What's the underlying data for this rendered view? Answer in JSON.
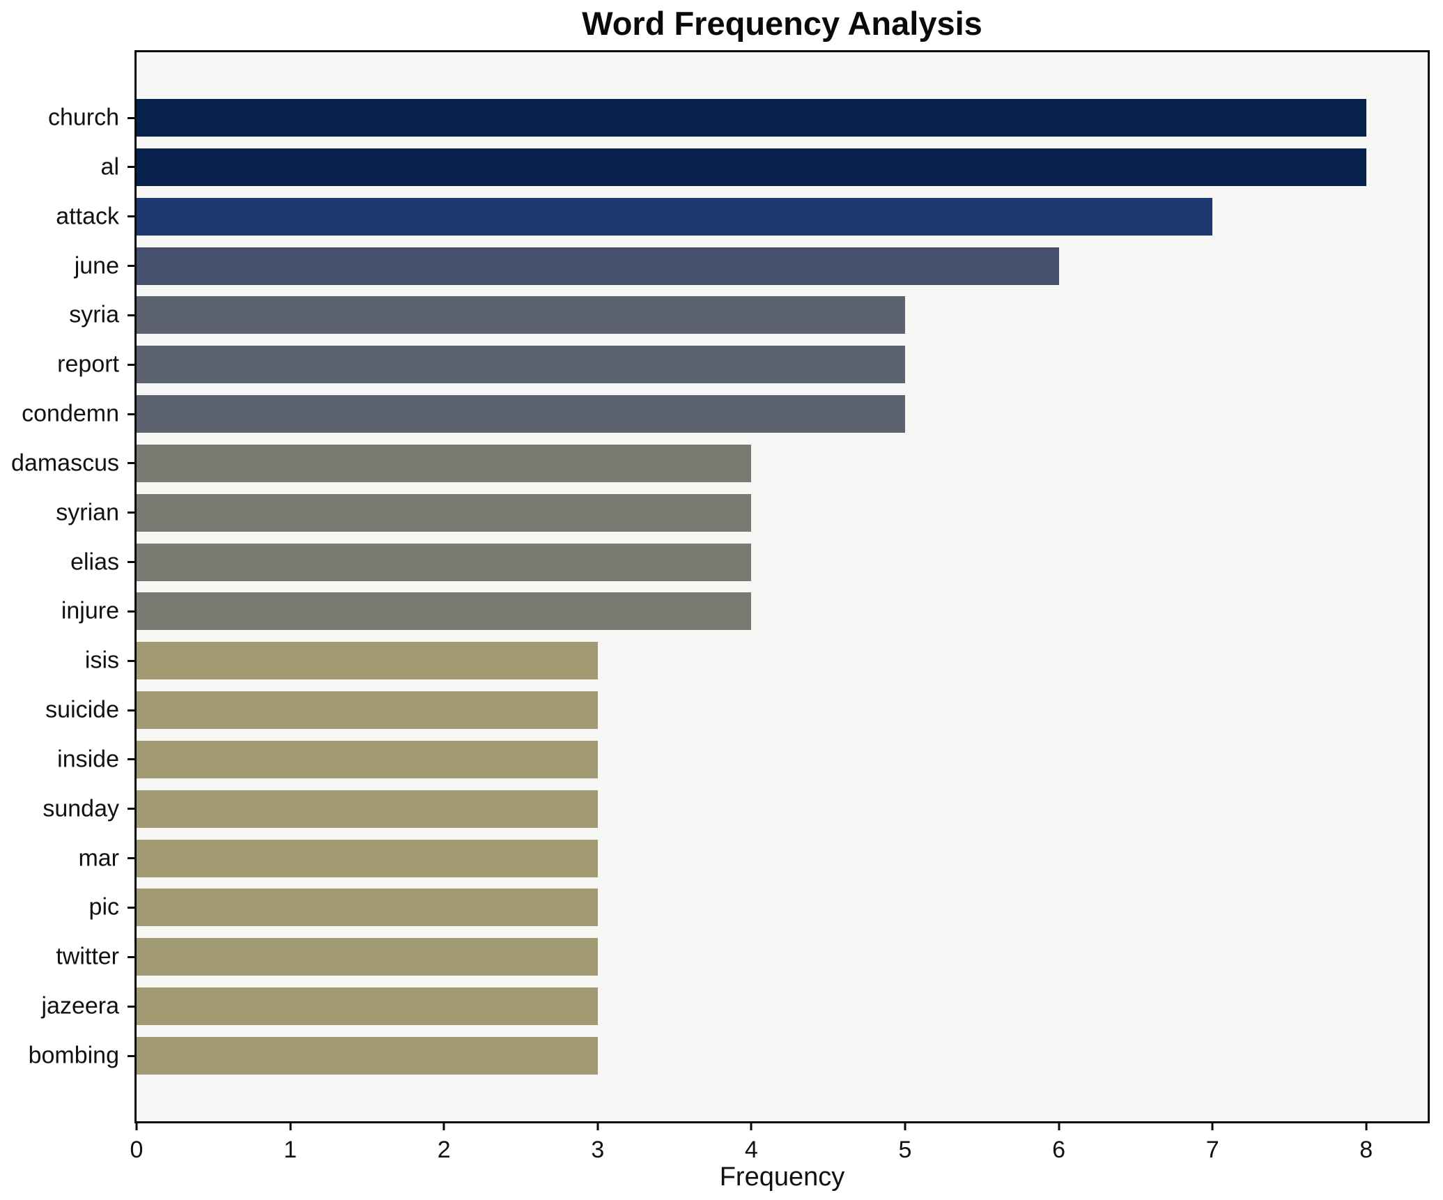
{
  "chart_data": {
    "type": "bar",
    "orientation": "horizontal",
    "title": "Word Frequency Analysis",
    "xlabel": "Frequency",
    "ylabel": "",
    "categories": [
      "church",
      "al",
      "attack",
      "june",
      "syria",
      "report",
      "condemn",
      "damascus",
      "syrian",
      "elias",
      "injure",
      "isis",
      "suicide",
      "inside",
      "sunday",
      "mar",
      "pic",
      "twitter",
      "jazeera",
      "bombing"
    ],
    "values": [
      8,
      8,
      7,
      6,
      5,
      5,
      5,
      4,
      4,
      4,
      4,
      3,
      3,
      3,
      3,
      3,
      3,
      3,
      3,
      3
    ],
    "xlim": [
      0,
      8.4
    ],
    "x_ticks": [
      0,
      1,
      2,
      3,
      4,
      5,
      6,
      7,
      8
    ],
    "grid": false,
    "legend": false,
    "value_colors": {
      "8": "#05214c",
      "7": "#1d3a6e",
      "6": "#46506f",
      "5": "#5d6271",
      "4": "#7a7972",
      "3": "#a29a73"
    },
    "plot_background": "#f7f7f5",
    "figure_background": "#ffffff",
    "spine_color": "#0a0a0a"
  }
}
